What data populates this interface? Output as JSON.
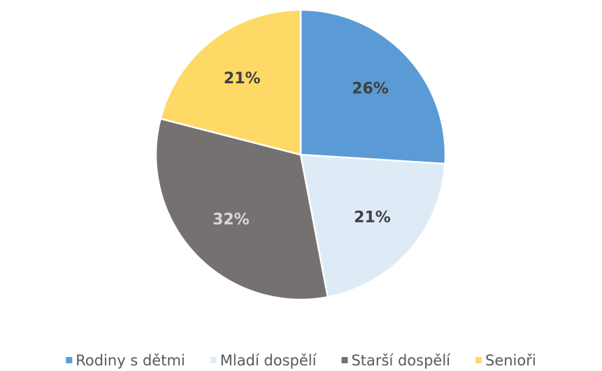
{
  "chart_data": {
    "type": "pie",
    "categories": [
      "Rodiny s dětmi",
      "Mladí dospělí",
      "Starší dospělí",
      "Senioři"
    ],
    "values": [
      26,
      21,
      32,
      21
    ],
    "value_labels": [
      "26%",
      "21%",
      "32%",
      "21%"
    ],
    "colors": [
      "#5b9bd5",
      "#deebf7",
      "#767171",
      "#ffd966"
    ],
    "label_colors": [
      "#404040",
      "#404040",
      "#d9d9d9",
      "#404040"
    ],
    "legend": "bottom"
  }
}
